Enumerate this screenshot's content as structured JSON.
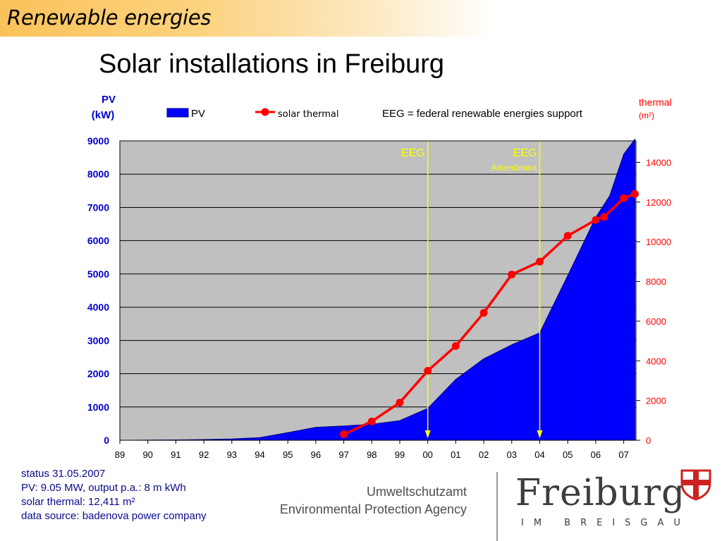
{
  "header": {
    "banner_title": "Renewable energies",
    "title": "Solar installations in Freiburg"
  },
  "chart_data": {
    "type": "area+line",
    "y_left_label_line1": "PV",
    "y_left_label_line2": "(kW)",
    "y_right_label_line1": "thermal",
    "y_right_label_line2": "(m²)",
    "legend_position": "top",
    "legend": [
      {
        "name": "PV",
        "kind": "area"
      },
      {
        "name": "solar thermal",
        "kind": "line-marker"
      }
    ],
    "note": "EEG = federal renewable energies support",
    "grid": true,
    "y_left_range": [
      0,
      9000
    ],
    "y_left_ticks": [
      "0",
      "1000",
      "2000",
      "3000",
      "4000",
      "5000",
      "6000",
      "7000",
      "8000",
      "9000"
    ],
    "y_right_range": [
      0,
      15000
    ],
    "y_right_ticks": [
      "0",
      "2000",
      "4000",
      "6000",
      "8000",
      "10000",
      "12000",
      "14000"
    ],
    "x_ticks": [
      "89",
      "90",
      "91",
      "92",
      "93",
      "94",
      "95",
      "96",
      "97",
      "98",
      "99",
      "00",
      "01",
      "02",
      "03",
      "04",
      "05",
      "06",
      "07"
    ],
    "series": [
      {
        "name": "PV",
        "axis": "left",
        "points": [
          {
            "x": 1989.5,
            "y": 0
          },
          {
            "x": 1990,
            "y": 5
          },
          {
            "x": 1991,
            "y": 10
          },
          {
            "x": 1992,
            "y": 20
          },
          {
            "x": 1993,
            "y": 40
          },
          {
            "x": 1994,
            "y": 80
          },
          {
            "x": 1995,
            "y": 230
          },
          {
            "x": 1996,
            "y": 390
          },
          {
            "x": 1997,
            "y": 430
          },
          {
            "x": 1998,
            "y": 480
          },
          {
            "x": 1999,
            "y": 590
          },
          {
            "x": 2000,
            "y": 960
          },
          {
            "x": 2001,
            "y": 1830
          },
          {
            "x": 2002,
            "y": 2450
          },
          {
            "x": 2003,
            "y": 2870
          },
          {
            "x": 2004,
            "y": 3230
          },
          {
            "x": 2005,
            "y": 4950
          },
          {
            "x": 2006,
            "y": 6700
          },
          {
            "x": 2006.5,
            "y": 7350
          },
          {
            "x": 2007,
            "y": 8600
          },
          {
            "x": 2007.4,
            "y": 9050
          }
        ],
        "color": "#0000ff"
      },
      {
        "name": "solar thermal",
        "axis": "right",
        "points": [
          {
            "x": 1997,
            "y": 300
          },
          {
            "x": 1998,
            "y": 950
          },
          {
            "x": 1999,
            "y": 1900
          },
          {
            "x": 2000,
            "y": 3500
          },
          {
            "x": 2001,
            "y": 4750
          },
          {
            "x": 2002,
            "y": 6420
          },
          {
            "x": 2003,
            "y": 8350
          },
          {
            "x": 2004,
            "y": 9000
          },
          {
            "x": 2005,
            "y": 10300
          },
          {
            "x": 2006,
            "y": 11100
          },
          {
            "x": 2006.3,
            "y": 11250
          },
          {
            "x": 2007,
            "y": 12200
          },
          {
            "x": 2007.4,
            "y": 12411
          }
        ],
        "color": "#ff0000"
      }
    ],
    "markers": [
      {
        "x": 2000,
        "label": "EEG",
        "sublabel": ""
      },
      {
        "x": 2004,
        "label": "EEG",
        "sublabel": "Amendment"
      }
    ],
    "colors": {
      "plot_bg": "#c0c0c0",
      "left_axis": "#0000cc",
      "right_axis": "#ff0000",
      "marker": "#ffff00",
      "marker_label": "#ffff00"
    }
  },
  "footer": {
    "status_lines": [
      "status 31.05.2007",
      "PV: 9.05 MW, output p.a.: 8 m kWh",
      "solar thermal: 12,411 m²",
      "data source: badenova power company"
    ],
    "agency_de": "Umweltschutzamt",
    "agency_en": "Environmental Protection Agency",
    "logo_word": "Freiburg",
    "logo_sub": "IM BREISGAU"
  }
}
